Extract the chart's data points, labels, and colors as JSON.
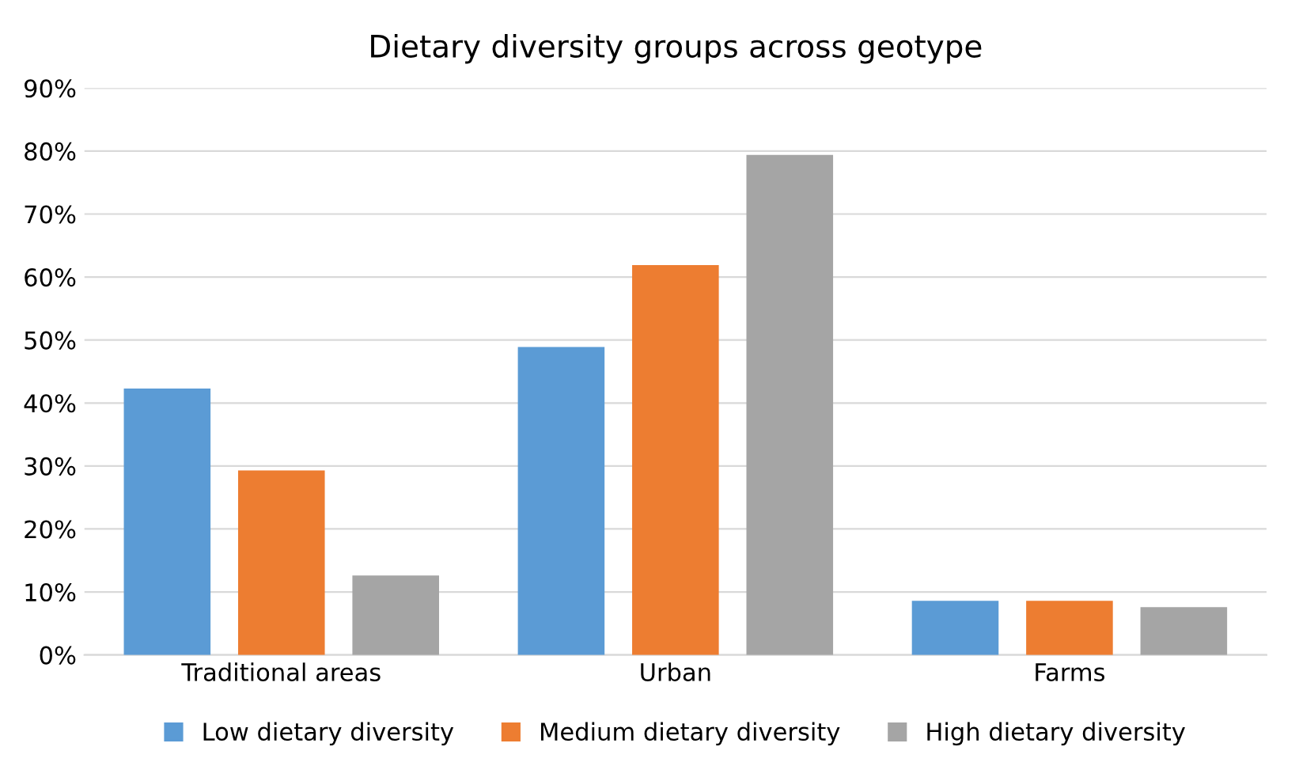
{
  "chart_data": {
    "type": "bar",
    "title": "Dietary diversity groups across geotype",
    "categories": [
      "Traditional areas",
      "Urban",
      "Farms"
    ],
    "series": [
      {
        "name": "Low dietary diversity",
        "color": "#5b9bd5",
        "values": [
          42.3,
          48.9,
          8.6
        ]
      },
      {
        "name": "Medium dietary diversity",
        "color": "#ed7d31",
        "values": [
          29.3,
          61.9,
          8.6
        ]
      },
      {
        "name": "High dietary diversity",
        "color": "#a5a5a5",
        "values": [
          12.6,
          79.4,
          7.6
        ]
      }
    ],
    "ylim": [
      0,
      90
    ],
    "yticks": [
      {
        "value": 0,
        "label": "0%"
      },
      {
        "value": 10,
        "label": "10%"
      },
      {
        "value": 20,
        "label": "20%"
      },
      {
        "value": 30,
        "label": "30%"
      },
      {
        "value": 40,
        "label": "40%"
      },
      {
        "value": 50,
        "label": "50%"
      },
      {
        "value": 60,
        "label": "60%"
      },
      {
        "value": 70,
        "label": "70%"
      },
      {
        "value": 80,
        "label": "80%"
      },
      {
        "value": 90,
        "label": "90%"
      }
    ],
    "grid": "y",
    "legend": "bottom"
  }
}
